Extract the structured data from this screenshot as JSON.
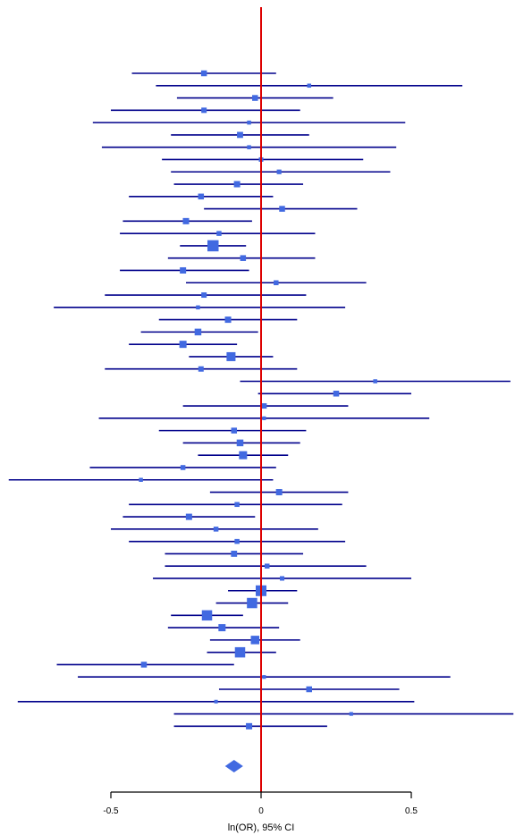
{
  "chart_data": {
    "type": "forest",
    "xlabel": "ln(OR), 95% CI",
    "xlim": [
      -0.84,
      0.84
    ],
    "xticks": [
      -0.5,
      0,
      0.5
    ],
    "xtick_labels": [
      "-0.5",
      "0",
      "0.5"
    ],
    "reference_line": 0,
    "studies": [
      {
        "est": -0.19,
        "lo": -0.43,
        "hi": 0.05,
        "w": 0.35
      },
      {
        "est": 0.16,
        "lo": -0.35,
        "hi": 0.67,
        "w": 0.15
      },
      {
        "est": -0.02,
        "lo": -0.28,
        "hi": 0.24,
        "w": 0.35
      },
      {
        "est": -0.19,
        "lo": -0.5,
        "hi": 0.13,
        "w": 0.3
      },
      {
        "est": -0.04,
        "lo": -0.56,
        "hi": 0.48,
        "w": 0.15
      },
      {
        "est": -0.07,
        "lo": -0.3,
        "hi": 0.16,
        "w": 0.38
      },
      {
        "est": -0.04,
        "lo": -0.53,
        "hi": 0.45,
        "w": 0.15
      },
      {
        "est": 0.0,
        "lo": -0.33,
        "hi": 0.34,
        "w": 0.2
      },
      {
        "est": 0.06,
        "lo": -0.3,
        "hi": 0.43,
        "w": 0.22
      },
      {
        "est": -0.08,
        "lo": -0.29,
        "hi": 0.14,
        "w": 0.4
      },
      {
        "est": -0.2,
        "lo": -0.44,
        "hi": 0.04,
        "w": 0.35
      },
      {
        "est": 0.07,
        "lo": -0.19,
        "hi": 0.32,
        "w": 0.35
      },
      {
        "est": -0.25,
        "lo": -0.46,
        "hi": -0.03,
        "w": 0.4
      },
      {
        "est": -0.14,
        "lo": -0.47,
        "hi": 0.18,
        "w": 0.25
      },
      {
        "est": -0.16,
        "lo": -0.27,
        "hi": -0.05,
        "w": 0.95
      },
      {
        "est": -0.06,
        "lo": -0.31,
        "hi": 0.18,
        "w": 0.35
      },
      {
        "est": -0.26,
        "lo": -0.47,
        "hi": -0.04,
        "w": 0.4
      },
      {
        "est": 0.05,
        "lo": -0.25,
        "hi": 0.35,
        "w": 0.25
      },
      {
        "est": -0.19,
        "lo": -0.52,
        "hi": 0.15,
        "w": 0.3
      },
      {
        "est": -0.21,
        "lo": -0.69,
        "hi": 0.28,
        "w": 0.15
      },
      {
        "est": -0.11,
        "lo": -0.34,
        "hi": 0.12,
        "w": 0.4
      },
      {
        "est": -0.21,
        "lo": -0.4,
        "hi": -0.01,
        "w": 0.45
      },
      {
        "est": -0.26,
        "lo": -0.44,
        "hi": -0.08,
        "w": 0.5
      },
      {
        "est": -0.1,
        "lo": -0.24,
        "hi": 0.04,
        "w": 0.7
      },
      {
        "est": -0.2,
        "lo": -0.52,
        "hi": 0.12,
        "w": 0.3
      },
      {
        "est": 0.38,
        "lo": -0.07,
        "hi": 0.83,
        "w": 0.15
      },
      {
        "est": 0.25,
        "lo": -0.01,
        "hi": 0.5,
        "w": 0.35
      },
      {
        "est": 0.01,
        "lo": -0.26,
        "hi": 0.29,
        "w": 0.3
      },
      {
        "est": 0.01,
        "lo": -0.54,
        "hi": 0.56,
        "w": 0.12
      },
      {
        "est": -0.09,
        "lo": -0.34,
        "hi": 0.15,
        "w": 0.35
      },
      {
        "est": -0.07,
        "lo": -0.26,
        "hi": 0.13,
        "w": 0.45
      },
      {
        "est": -0.06,
        "lo": -0.21,
        "hi": 0.09,
        "w": 0.6
      },
      {
        "est": -0.26,
        "lo": -0.57,
        "hi": 0.05,
        "w": 0.25
      },
      {
        "est": -0.4,
        "lo": -0.84,
        "hi": 0.04,
        "w": 0.15
      },
      {
        "est": 0.06,
        "lo": -0.17,
        "hi": 0.29,
        "w": 0.4
      },
      {
        "est": -0.08,
        "lo": -0.44,
        "hi": 0.27,
        "w": 0.25
      },
      {
        "est": -0.24,
        "lo": -0.46,
        "hi": -0.02,
        "w": 0.4
      },
      {
        "est": -0.15,
        "lo": -0.5,
        "hi": 0.19,
        "w": 0.25
      },
      {
        "est": -0.08,
        "lo": -0.44,
        "hi": 0.28,
        "w": 0.25
      },
      {
        "est": -0.09,
        "lo": -0.32,
        "hi": 0.14,
        "w": 0.38
      },
      {
        "est": 0.02,
        "lo": -0.32,
        "hi": 0.35,
        "w": 0.25
      },
      {
        "est": 0.07,
        "lo": -0.36,
        "hi": 0.5,
        "w": 0.2
      },
      {
        "est": 0.0,
        "lo": -0.11,
        "hi": 0.12,
        "w": 0.9
      },
      {
        "est": -0.03,
        "lo": -0.15,
        "hi": 0.09,
        "w": 0.85
      },
      {
        "est": -0.18,
        "lo": -0.3,
        "hi": -0.06,
        "w": 0.85
      },
      {
        "est": -0.13,
        "lo": -0.31,
        "hi": 0.06,
        "w": 0.5
      },
      {
        "est": -0.02,
        "lo": -0.17,
        "hi": 0.13,
        "w": 0.65
      },
      {
        "est": -0.07,
        "lo": -0.18,
        "hi": 0.05,
        "w": 0.85
      },
      {
        "est": -0.39,
        "lo": -0.68,
        "hi": -0.09,
        "w": 0.35
      },
      {
        "est": 0.01,
        "lo": -0.61,
        "hi": 0.63,
        "w": 0.12
      },
      {
        "est": 0.16,
        "lo": -0.14,
        "hi": 0.46,
        "w": 0.35
      },
      {
        "est": -0.15,
        "lo": -0.81,
        "hi": 0.51,
        "w": 0.1
      },
      {
        "est": 0.3,
        "lo": -0.29,
        "hi": 0.84,
        "w": 0.12
      },
      {
        "est": -0.04,
        "lo": -0.29,
        "hi": 0.22,
        "w": 0.4
      }
    ],
    "pooled": {
      "est": -0.09,
      "lo": -0.12,
      "hi": -0.06
    },
    "colors": {
      "ci_line": "#00008b",
      "box": "#4169e1",
      "reference": "#dd0000",
      "axis": "#000000"
    }
  }
}
